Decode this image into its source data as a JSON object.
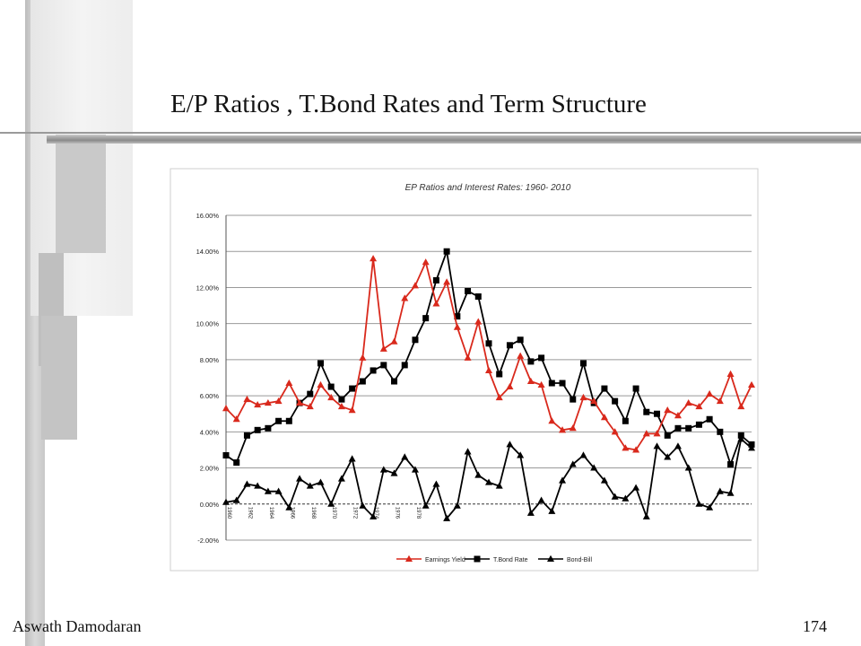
{
  "slide": {
    "title": "E/P Ratios , T.Bond Rates and Term Structure",
    "author": "Aswath Damodaran",
    "page_number": "174"
  },
  "theme": {
    "earnings_color": "#d9291c",
    "bond_color": "#000000",
    "grid_color": "#999999"
  },
  "chart_data": {
    "type": "line",
    "title": "EP Ratios and Interest Rates: 1960- 2010",
    "xlabel": "",
    "ylabel": "",
    "ylim": [
      -2,
      16
    ],
    "y_ticks": [
      "16.00%",
      "14.00%",
      "12.00%",
      "10.00%",
      "8.00%",
      "6.00%",
      "4.00%",
      "2.00%",
      "0.00%",
      "-2.00%"
    ],
    "x": [
      1960,
      1961,
      1962,
      1963,
      1964,
      1965,
      1966,
      1967,
      1968,
      1969,
      1970,
      1971,
      1972,
      1973,
      1974,
      1975,
      1976,
      1977,
      1978,
      1979,
      1980,
      1981,
      1982,
      1983,
      1984,
      1985,
      1986,
      1987,
      1988,
      1989,
      1990,
      1991,
      1992,
      1993,
      1994,
      1995,
      1996,
      1997,
      1998,
      1999,
      2000,
      2001,
      2002,
      2003,
      2004,
      2005,
      2006,
      2007,
      2008,
      2009,
      2010
    ],
    "x_ticks": [
      "1960",
      "1962",
      "1964",
      "1966",
      "1968",
      "1970",
      "1972",
      "1974",
      "1976",
      "1978"
    ],
    "grid": true,
    "legend_position": "bottom",
    "series": [
      {
        "name": "Earnings Yield",
        "marker": "triangle",
        "values": [
          5.3,
          4.7,
          5.8,
          5.5,
          5.6,
          5.7,
          6.7,
          5.6,
          5.4,
          6.6,
          5.9,
          5.4,
          5.2,
          8.1,
          13.6,
          8.6,
          9.0,
          11.4,
          12.1,
          13.4,
          11.1,
          12.3,
          9.8,
          8.1,
          10.1,
          7.4,
          5.9,
          6.5,
          8.2,
          6.8,
          6.6,
          4.6,
          4.1,
          4.2,
          5.9,
          5.7,
          4.8,
          4.0,
          3.1,
          3.0,
          3.9,
          3.9,
          5.2,
          4.9,
          5.6,
          5.4,
          6.1,
          5.7,
          7.2,
          5.4,
          6.6
        ]
      },
      {
        "name": "T.Bond Rate",
        "marker": "square",
        "values": [
          2.7,
          2.3,
          3.8,
          4.1,
          4.2,
          4.6,
          4.6,
          5.6,
          6.1,
          7.8,
          6.5,
          5.8,
          6.4,
          6.8,
          7.4,
          7.7,
          6.8,
          7.7,
          9.1,
          10.3,
          12.4,
          14.0,
          10.4,
          11.8,
          11.5,
          8.9,
          7.2,
          8.8,
          9.1,
          7.9,
          8.1,
          6.7,
          6.7,
          5.8,
          7.8,
          5.6,
          6.4,
          5.7,
          4.6,
          6.4,
          5.1,
          5.0,
          3.8,
          4.2,
          4.2,
          4.4,
          4.7,
          4.0,
          2.2,
          3.8,
          3.3
        ]
      },
      {
        "name": "Bond-Bill",
        "marker": "triangle",
        "values": [
          0.1,
          0.2,
          1.1,
          1.0,
          0.7,
          0.7,
          -0.2,
          1.4,
          1.0,
          1.2,
          0.0,
          1.4,
          2.5,
          -0.1,
          -0.7,
          1.9,
          1.7,
          2.6,
          1.9,
          -0.1,
          1.1,
          -0.8,
          -0.1,
          2.9,
          1.6,
          1.2,
          1.0,
          3.3,
          2.7,
          -0.5,
          0.2,
          -0.4,
          1.3,
          2.2,
          2.7,
          2.0,
          1.3,
          0.4,
          0.3,
          0.9,
          -0.7,
          3.2,
          2.6,
          3.2,
          2.0,
          0.0,
          -0.2,
          0.7,
          0.6,
          3.6,
          3.1
        ]
      }
    ]
  }
}
